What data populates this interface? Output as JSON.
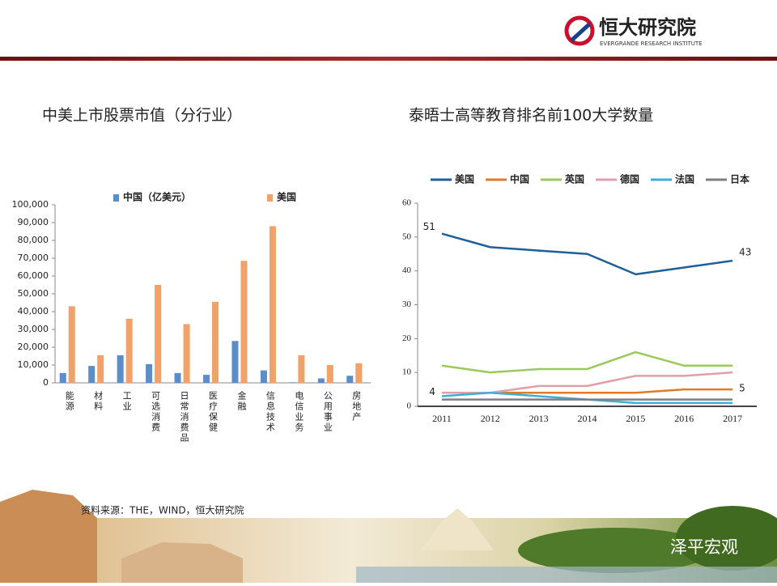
{
  "header": {
    "logo_name": "恒大研究院",
    "logo_subtitle": "EVERGRANDE RESEARCH INSTITUTE"
  },
  "chart_data": [
    {
      "type": "bar",
      "title": "中美上市股票市值（分行业）",
      "categories": [
        "能源",
        "材料",
        "工业",
        "可选消费",
        "日常消费品",
        "医疗保健",
        "金融",
        "信息技术",
        "电信业务",
        "公用事业",
        "房地产"
      ],
      "series": [
        {
          "name": "中国（亿美元）",
          "color": "#5b8ec9",
          "values": [
            5500,
            9500,
            15500,
            10500,
            5500,
            4500,
            23500,
            7000,
            300,
            2500,
            4000
          ]
        },
        {
          "name": "美国",
          "color": "#f0a26a",
          "values": [
            43000,
            15500,
            36000,
            55000,
            33000,
            45500,
            68500,
            88000,
            15500,
            10000,
            11000
          ]
        }
      ],
      "ylim": [
        0,
        100000
      ],
      "yticks": [
        0,
        {
          "value": 10000,
          "label": "10,000"
        },
        {
          "value": 20000,
          "label": "20,000"
        },
        {
          "value": 30000,
          "label": "30,000"
        },
        {
          "value": 40000,
          "label": "40,000"
        },
        {
          "value": 50000,
          "label": "50,000"
        },
        {
          "value": 60000,
          "label": "60,000"
        },
        {
          "value": 70000,
          "label": "70,000"
        },
        {
          "value": 80000,
          "label": "80,000"
        },
        {
          "value": 90000,
          "label": "90,000"
        },
        {
          "value": 100000,
          "label": "100,000"
        }
      ],
      "legend": "top"
    },
    {
      "type": "line",
      "title": "泰晤士高等教育排名前100大学数量",
      "categories": [
        "2011",
        "2012",
        "2013",
        "2014",
        "2015",
        "2016",
        "2017"
      ],
      "series": [
        {
          "name": "美国",
          "color": "#1f5f99",
          "values": [
            51,
            47,
            46,
            45,
            39,
            41,
            43
          ]
        },
        {
          "name": "中国",
          "color": "#e07b2a",
          "values": [
            4,
            4,
            4,
            4,
            4,
            5,
            5
          ]
        },
        {
          "name": "英国",
          "color": "#9bc95b",
          "values": [
            12,
            10,
            11,
            11,
            16,
            12,
            12
          ]
        },
        {
          "name": "德国",
          "color": "#e0a0a8",
          "values": [
            4,
            4,
            6,
            6,
            9,
            9,
            10
          ]
        },
        {
          "name": "法国",
          "color": "#3ab0d8",
          "values": [
            3,
            4,
            3,
            2,
            1,
            1,
            1
          ]
        },
        {
          "name": "日本",
          "color": "#7f7f7f",
          "values": [
            2,
            2,
            2,
            2,
            2,
            2,
            2
          ]
        }
      ],
      "ylim": [
        0,
        60
      ],
      "yticks": [
        0,
        10,
        20,
        30,
        40,
        50,
        60
      ],
      "legend": "top"
    }
  ],
  "source": "资料来源：THE，WIND，恒大研究院",
  "watermark": "泽平宏观"
}
